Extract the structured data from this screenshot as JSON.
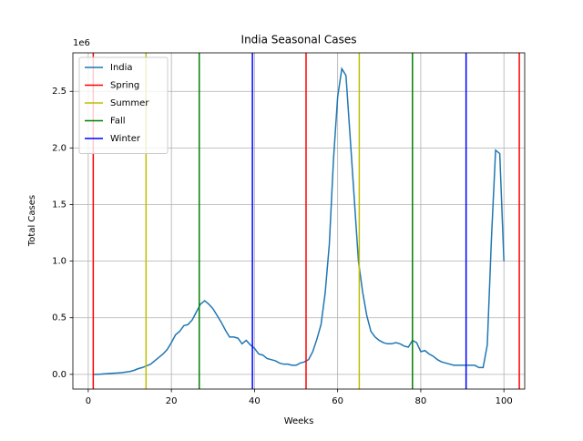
{
  "chart_data": {
    "type": "line",
    "title": "India Seasonal Cases",
    "x_label": "Weeks",
    "y_label": "Total Cases",
    "y_offset_label": "1e6",
    "x": [
      1,
      2,
      3,
      4,
      5,
      6,
      7,
      8,
      9,
      10,
      11,
      12,
      13,
      14,
      15,
      16,
      17,
      18,
      19,
      20,
      21,
      22,
      23,
      24,
      25,
      26,
      27,
      28,
      29,
      30,
      31,
      32,
      33,
      34,
      35,
      36,
      37,
      38,
      39,
      40,
      41,
      42,
      43,
      44,
      45,
      46,
      47,
      48,
      49,
      50,
      51,
      52,
      53,
      54,
      55,
      56,
      57,
      58,
      59,
      60,
      61,
      62,
      63,
      64,
      65,
      66,
      67,
      68,
      69,
      70,
      71,
      72,
      73,
      74,
      75,
      76,
      77,
      78,
      79,
      80,
      81,
      82,
      83,
      84,
      85,
      86,
      87,
      88,
      89,
      90,
      91,
      92,
      93,
      94,
      95,
      96,
      97,
      98,
      99,
      100
    ],
    "series": [
      {
        "name": "India",
        "color": "#1f77b4",
        "values": [
          0.0,
          0.0,
          0.002,
          0.005,
          0.008,
          0.01,
          0.012,
          0.015,
          0.02,
          0.025,
          0.035,
          0.05,
          0.06,
          0.075,
          0.09,
          0.12,
          0.15,
          0.18,
          0.22,
          0.28,
          0.35,
          0.38,
          0.43,
          0.44,
          0.48,
          0.55,
          0.62,
          0.65,
          0.62,
          0.58,
          0.52,
          0.46,
          0.39,
          0.33,
          0.33,
          0.32,
          0.27,
          0.3,
          0.26,
          0.23,
          0.18,
          0.17,
          0.14,
          0.13,
          0.12,
          0.1,
          0.09,
          0.09,
          0.08,
          0.08,
          0.1,
          0.11,
          0.13,
          0.2,
          0.31,
          0.44,
          0.72,
          1.15,
          1.9,
          2.45,
          2.7,
          2.64,
          2.1,
          1.55,
          1.0,
          0.73,
          0.52,
          0.38,
          0.33,
          0.3,
          0.28,
          0.27,
          0.27,
          0.28,
          0.27,
          0.25,
          0.24,
          0.3,
          0.28,
          0.2,
          0.21,
          0.18,
          0.16,
          0.13,
          0.11,
          0.1,
          0.09,
          0.08,
          0.08,
          0.08,
          0.08,
          0.08,
          0.08,
          0.06,
          0.06,
          0.26,
          1.2,
          1.98,
          1.95,
          1.0
        ]
      }
    ],
    "season_lines": [
      {
        "name": "Spring",
        "color": "#ff0000",
        "x": [
          1.2,
          52.4,
          103.7
        ]
      },
      {
        "name": "Summer",
        "color": "#bfbf00",
        "x": [
          13.9,
          65.2
        ]
      },
      {
        "name": "Fall",
        "color": "#008000",
        "x": [
          26.7,
          78.0
        ]
      },
      {
        "name": "Winter",
        "color": "#0000ff",
        "x": [
          39.5,
          90.9
        ]
      }
    ],
    "xlim": [
      -3.7,
      105
    ],
    "ylim": [
      -0.13,
      2.84
    ],
    "xticks": [
      0,
      20,
      40,
      60,
      80,
      100
    ],
    "yticks": [
      {
        "value": 0,
        "label": "0.0"
      },
      0.5,
      {
        "value": 1,
        "label": "1.0"
      },
      1.5,
      {
        "value": 2,
        "label": "2.0"
      },
      2.5
    ],
    "grid": true,
    "legend": "upper left"
  }
}
